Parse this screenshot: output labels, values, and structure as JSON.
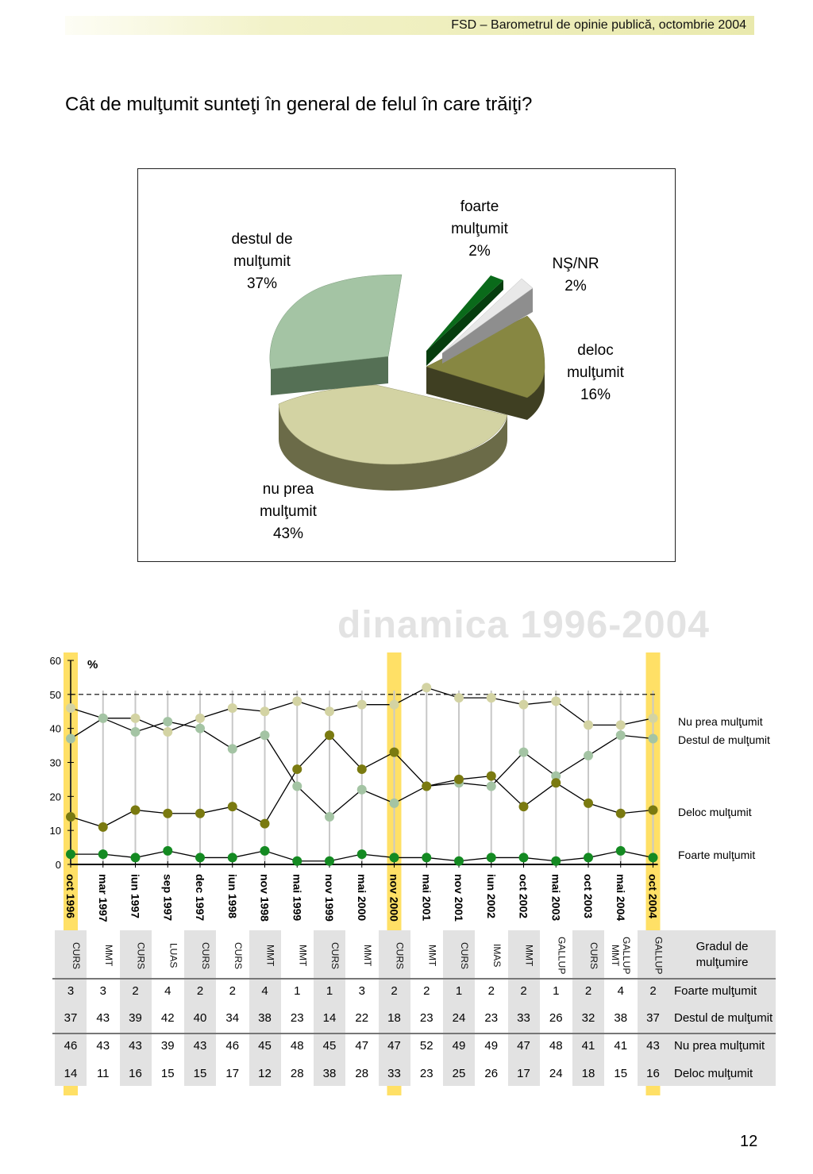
{
  "header": {
    "title": "FSD  –  Barometrul de opinie publică, octombrie 2004"
  },
  "question": "Cât de mulţumit sunteţi în general de felul în care trăiţi?",
  "pie": {
    "slices": [
      {
        "label_lines": [
          "foarte",
          "mulţumit",
          "2%"
        ],
        "value": 2,
        "color": "#0a6a1a"
      },
      {
        "label_lines": [
          "NŞ/NR",
          "2%"
        ],
        "value": 2,
        "color": "#e8e8e8"
      },
      {
        "label_lines": [
          "deloc",
          "mulţumit",
          "16%"
        ],
        "value": 16,
        "color": "#878742"
      },
      {
        "label_lines": [
          "nu prea",
          "mulţumit",
          "43%"
        ],
        "value": 43,
        "color": "#d3d3a3"
      },
      {
        "label_lines": [
          "destul de",
          "mulţumit",
          "37%"
        ],
        "value": 37,
        "color": "#a4c4a4"
      }
    ]
  },
  "watermark": "dinamica 1996-2004",
  "chart_data": {
    "type": "line",
    "title": "",
    "ylabel": "%",
    "ylim": [
      0,
      60
    ],
    "yticks": [
      "0",
      "10",
      "20",
      "30",
      "40",
      "50",
      "60"
    ],
    "reference_line": 50,
    "categories": [
      "oct 1996",
      "mar 1997",
      "iun 1997",
      "sep 1997",
      "dec 1997",
      "iun 1998",
      "nov 1998",
      "mai 1999",
      "nov 1999",
      "mai 2000",
      "nov 2000",
      "mai 2001",
      "nov 2001",
      "iun 2002",
      "oct 2002",
      "mai 2003",
      "oct 2003",
      "mai 2004",
      "oct 2004"
    ],
    "highlighted": [
      "oct 1996",
      "nov 2000",
      "oct 2004"
    ],
    "sources": [
      "CURS",
      "MMT",
      "CURS",
      "LUAS",
      "CURS",
      "CURS",
      "MMT",
      "MMT",
      "CURS",
      "MMT",
      "CURS",
      "MMT",
      "CURS",
      "IMAS",
      "MMT",
      "GALLUP",
      "CURS",
      "GALLUP MMT",
      "GALLUP"
    ],
    "series": [
      {
        "name": "Nu prea mulţumit",
        "color": "#d3d3a3",
        "values": [
          46,
          43,
          43,
          39,
          43,
          46,
          45,
          48,
          45,
          47,
          47,
          52,
          49,
          49,
          47,
          48,
          41,
          41,
          43
        ]
      },
      {
        "name": "Destul de mulţumit",
        "color": "#a4c4a4",
        "values": [
          37,
          43,
          39,
          42,
          40,
          34,
          38,
          23,
          14,
          22,
          18,
          23,
          24,
          23,
          33,
          26,
          32,
          38,
          37
        ]
      },
      {
        "name": "Deloc mulţumit",
        "color": "#7a7a10",
        "values": [
          14,
          11,
          16,
          15,
          15,
          17,
          12,
          28,
          38,
          28,
          33,
          23,
          25,
          26,
          17,
          24,
          18,
          15,
          16
        ]
      },
      {
        "name": "Foarte mulţumit",
        "color": "#148a22",
        "values": [
          3,
          3,
          2,
          4,
          2,
          2,
          4,
          1,
          1,
          3,
          2,
          2,
          1,
          2,
          2,
          1,
          2,
          4,
          2
        ]
      }
    ]
  },
  "table": {
    "header_label": "Gradul de mulţumire",
    "row_order": [
      "Foarte mulţumit",
      "Destul de mulţumit",
      "Nu prea mulţumit",
      "Deloc mulţumit"
    ]
  },
  "page_number": "12"
}
